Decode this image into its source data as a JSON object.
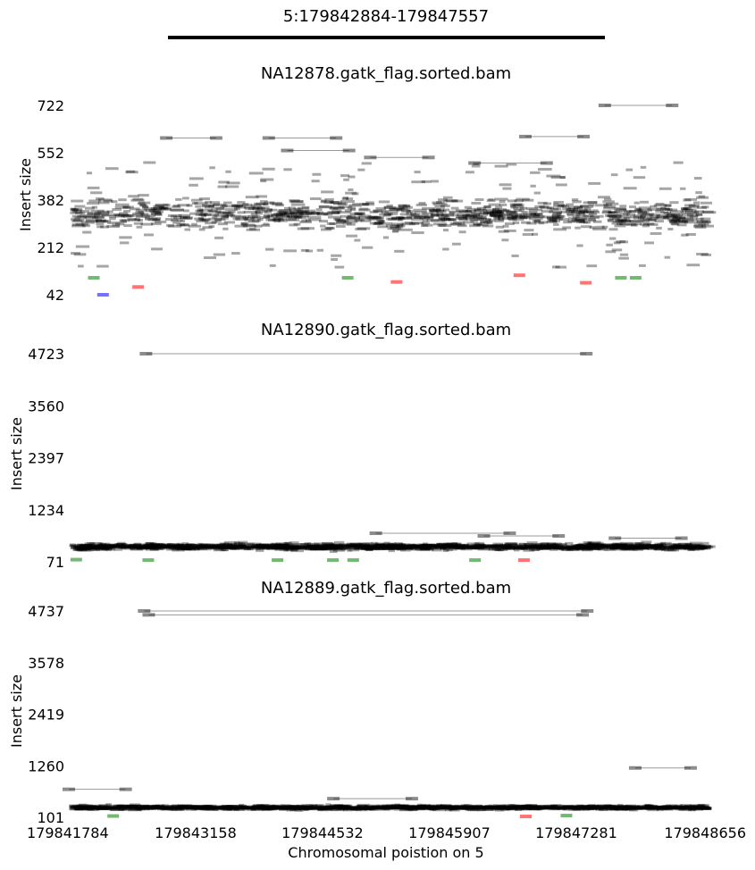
{
  "header": {
    "title": "5:179842884-179847557"
  },
  "chart_data": [
    {
      "type": "scatter",
      "title": "NA12878.gatk_flag.sorted.bam",
      "ylabel": "Insert size",
      "yticks": [
        42,
        212,
        382,
        552,
        722
      ],
      "ylim": [
        42,
        722
      ],
      "xlim": [
        179841784,
        179848656
      ],
      "colors": {
        "normal": "#000000",
        "green": "#008000",
        "red": "#ff0000",
        "blue": "#0000ff"
      },
      "outliers": [
        {
          "x1": 179842840,
          "x2": 179843380,
          "y": 605
        },
        {
          "x1": 179843950,
          "x2": 179844680,
          "y": 605
        },
        {
          "x1": 179846730,
          "x2": 179847360,
          "y": 610
        },
        {
          "x1": 179847590,
          "x2": 179848320,
          "y": 722
        },
        {
          "x1": 179844150,
          "x2": 179844820,
          "y": 560
        },
        {
          "x1": 179845050,
          "x2": 179845680,
          "y": 535
        },
        {
          "x1": 179846180,
          "x2": 179846960,
          "y": 515
        }
      ],
      "highlights": [
        {
          "x": 179842050,
          "y": 103,
          "color": "green"
        },
        {
          "x": 179842150,
          "y": 42,
          "color": "blue"
        },
        {
          "x": 179842530,
          "y": 70,
          "color": "red"
        },
        {
          "x": 179844800,
          "y": 103,
          "color": "green"
        },
        {
          "x": 179845330,
          "y": 88,
          "color": "red"
        },
        {
          "x": 179846660,
          "y": 112,
          "color": "red"
        },
        {
          "x": 179847380,
          "y": 85,
          "color": "red"
        },
        {
          "x": 179847760,
          "y": 103,
          "color": "green"
        },
        {
          "x": 179847920,
          "y": 103,
          "color": "green"
        }
      ]
    },
    {
      "type": "scatter",
      "title": "NA12890.gatk_flag.sorted.bam",
      "ylabel": "Insert size",
      "yticks": [
        71,
        1234,
        2397,
        3560,
        4723
      ],
      "ylim": [
        71,
        4723
      ],
      "xlim": [
        179841784,
        179848656
      ],
      "colors": {
        "normal": "#000000",
        "green": "#008000",
        "red": "#ff0000",
        "blue": "#0000ff"
      },
      "outliers": [
        {
          "x1": 179842620,
          "x2": 179847390,
          "y": 4723
        },
        {
          "x1": 179845110,
          "x2": 179846560,
          "y": 710
        },
        {
          "x1": 179846280,
          "x2": 179847090,
          "y": 650
        },
        {
          "x1": 179847700,
          "x2": 179848420,
          "y": 600
        }
      ],
      "highlights": [
        {
          "x": 179841860,
          "y": 120,
          "color": "green"
        },
        {
          "x": 179842640,
          "y": 110,
          "color": "green"
        },
        {
          "x": 179844040,
          "y": 110,
          "color": "green"
        },
        {
          "x": 179844640,
          "y": 110,
          "color": "green"
        },
        {
          "x": 179844860,
          "y": 110,
          "color": "green"
        },
        {
          "x": 179846180,
          "y": 110,
          "color": "green"
        },
        {
          "x": 179846710,
          "y": 110,
          "color": "red"
        }
      ]
    },
    {
      "type": "scatter",
      "title": "NA12889.gatk_flag.sorted.bam",
      "ylabel": "Insert size",
      "yticks": [
        101,
        1260,
        2419,
        3578,
        4737
      ],
      "ylim": [
        101,
        4737
      ],
      "xlim": [
        179841784,
        179848656
      ],
      "xticks": [
        179841784,
        179843158,
        179844532,
        179845907,
        179847281,
        179848656
      ],
      "xlabel": "Chromosomal poistion on 5",
      "colors": {
        "normal": "#000000",
        "green": "#008000",
        "red": "#ff0000",
        "blue": "#0000ff"
      },
      "outliers": [
        {
          "x1": 179842600,
          "x2": 179847400,
          "y": 4737
        },
        {
          "x1": 179842650,
          "x2": 179847350,
          "y": 4650
        },
        {
          "x1": 179841784,
          "x2": 179842400,
          "y": 730
        },
        {
          "x1": 179847920,
          "x2": 179848520,
          "y": 1210
        },
        {
          "x1": 179844650,
          "x2": 179845500,
          "y": 520
        }
      ],
      "highlights": [
        {
          "x": 179842260,
          "y": 130,
          "color": "green"
        },
        {
          "x": 179846730,
          "y": 120,
          "color": "red"
        },
        {
          "x": 179847170,
          "y": 140,
          "color": "green"
        }
      ]
    }
  ]
}
